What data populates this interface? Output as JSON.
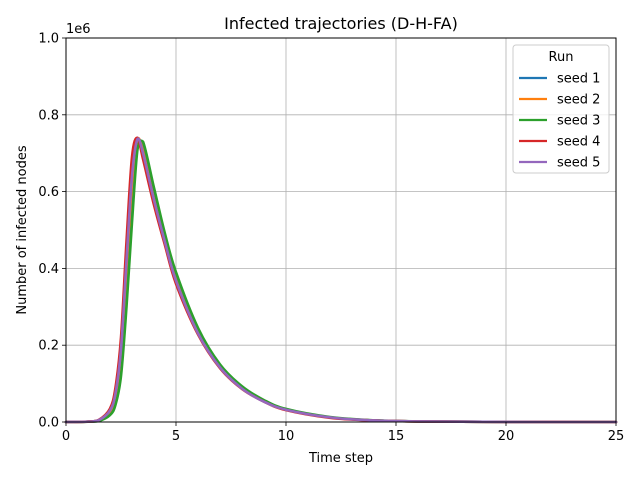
{
  "chart_data": {
    "type": "line",
    "title": "Infected trajectories (D-H-FA)",
    "xlabel": "Time step",
    "ylabel": "Number of infected nodes",
    "y_offset_text": "1e6",
    "xlim": [
      0,
      25
    ],
    "ylim": [
      0,
      1.0
    ],
    "x_ticks": [
      0,
      5,
      10,
      15,
      20,
      25
    ],
    "x_tick_labels": [
      "0",
      "5",
      "10",
      "15",
      "20",
      "25"
    ],
    "y_ticks": [
      0,
      0.2,
      0.4,
      0.6,
      0.8,
      1.0
    ],
    "y_tick_labels": [
      "0.0",
      "0.2",
      "0.4",
      "0.6",
      "0.8",
      "1.0"
    ],
    "grid": true,
    "legend": {
      "title": "Run",
      "position": "top-right"
    },
    "series": [
      {
        "name": "seed 1",
        "color": "#1f77b4",
        "x": [
          0,
          1,
          1.5,
          2,
          2.25,
          2.5,
          2.75,
          3,
          3.25,
          3.5,
          4,
          4.5,
          5,
          6,
          7,
          8,
          9,
          10,
          12,
          14,
          16,
          20,
          25
        ],
        "y": [
          0,
          0.001,
          0.005,
          0.025,
          0.065,
          0.17,
          0.38,
          0.6,
          0.735,
          0.71,
          0.585,
          0.475,
          0.375,
          0.235,
          0.145,
          0.09,
          0.055,
          0.033,
          0.012,
          0.004,
          0.0015,
          0.0002,
          0
        ]
      },
      {
        "name": "seed 2",
        "color": "#ff7f0e",
        "x": [
          0,
          1,
          1.5,
          2,
          2.25,
          2.5,
          2.75,
          3,
          3.25,
          3.5,
          4,
          4.5,
          5,
          6,
          7,
          8,
          9,
          10,
          12,
          14,
          16,
          20,
          25
        ],
        "y": [
          0,
          0.001,
          0.005,
          0.028,
          0.07,
          0.18,
          0.4,
          0.62,
          0.738,
          0.705,
          0.58,
          0.47,
          0.37,
          0.232,
          0.143,
          0.088,
          0.054,
          0.032,
          0.012,
          0.004,
          0.0015,
          0.0002,
          0
        ]
      },
      {
        "name": "seed 3",
        "color": "#2ca02c",
        "x": [
          0,
          1,
          1.5,
          2,
          2.25,
          2.5,
          2.75,
          3,
          3.25,
          3.5,
          4,
          4.5,
          5,
          6,
          7,
          8,
          9,
          10,
          12,
          14,
          16,
          20,
          25
        ],
        "y": [
          0,
          0.0008,
          0.003,
          0.018,
          0.045,
          0.12,
          0.3,
          0.52,
          0.71,
          0.73,
          0.61,
          0.49,
          0.39,
          0.245,
          0.15,
          0.093,
          0.057,
          0.034,
          0.013,
          0.0045,
          0.0016,
          0.0002,
          0
        ]
      },
      {
        "name": "seed 4",
        "color": "#d62728",
        "x": [
          0,
          1,
          1.5,
          2,
          2.25,
          2.5,
          2.75,
          3,
          3.25,
          3.5,
          4,
          4.5,
          5,
          6,
          7,
          8,
          9,
          10,
          12,
          14,
          16,
          20,
          25
        ],
        "y": [
          0,
          0.0012,
          0.006,
          0.035,
          0.09,
          0.22,
          0.47,
          0.69,
          0.74,
          0.685,
          0.565,
          0.46,
          0.36,
          0.228,
          0.14,
          0.086,
          0.053,
          0.031,
          0.011,
          0.004,
          0.0014,
          0.0002,
          0
        ]
      },
      {
        "name": "seed 5",
        "color": "#9467bd",
        "x": [
          0,
          1,
          1.5,
          2,
          2.25,
          2.5,
          2.75,
          3,
          3.25,
          3.5,
          4,
          4.5,
          5,
          6,
          7,
          8,
          9,
          10,
          12,
          14,
          16,
          20,
          25
        ],
        "y": [
          0,
          0.001,
          0.005,
          0.03,
          0.075,
          0.19,
          0.42,
          0.64,
          0.737,
          0.7,
          0.578,
          0.468,
          0.368,
          0.231,
          0.142,
          0.087,
          0.053,
          0.032,
          0.012,
          0.004,
          0.0015,
          0.0002,
          0
        ]
      }
    ]
  }
}
